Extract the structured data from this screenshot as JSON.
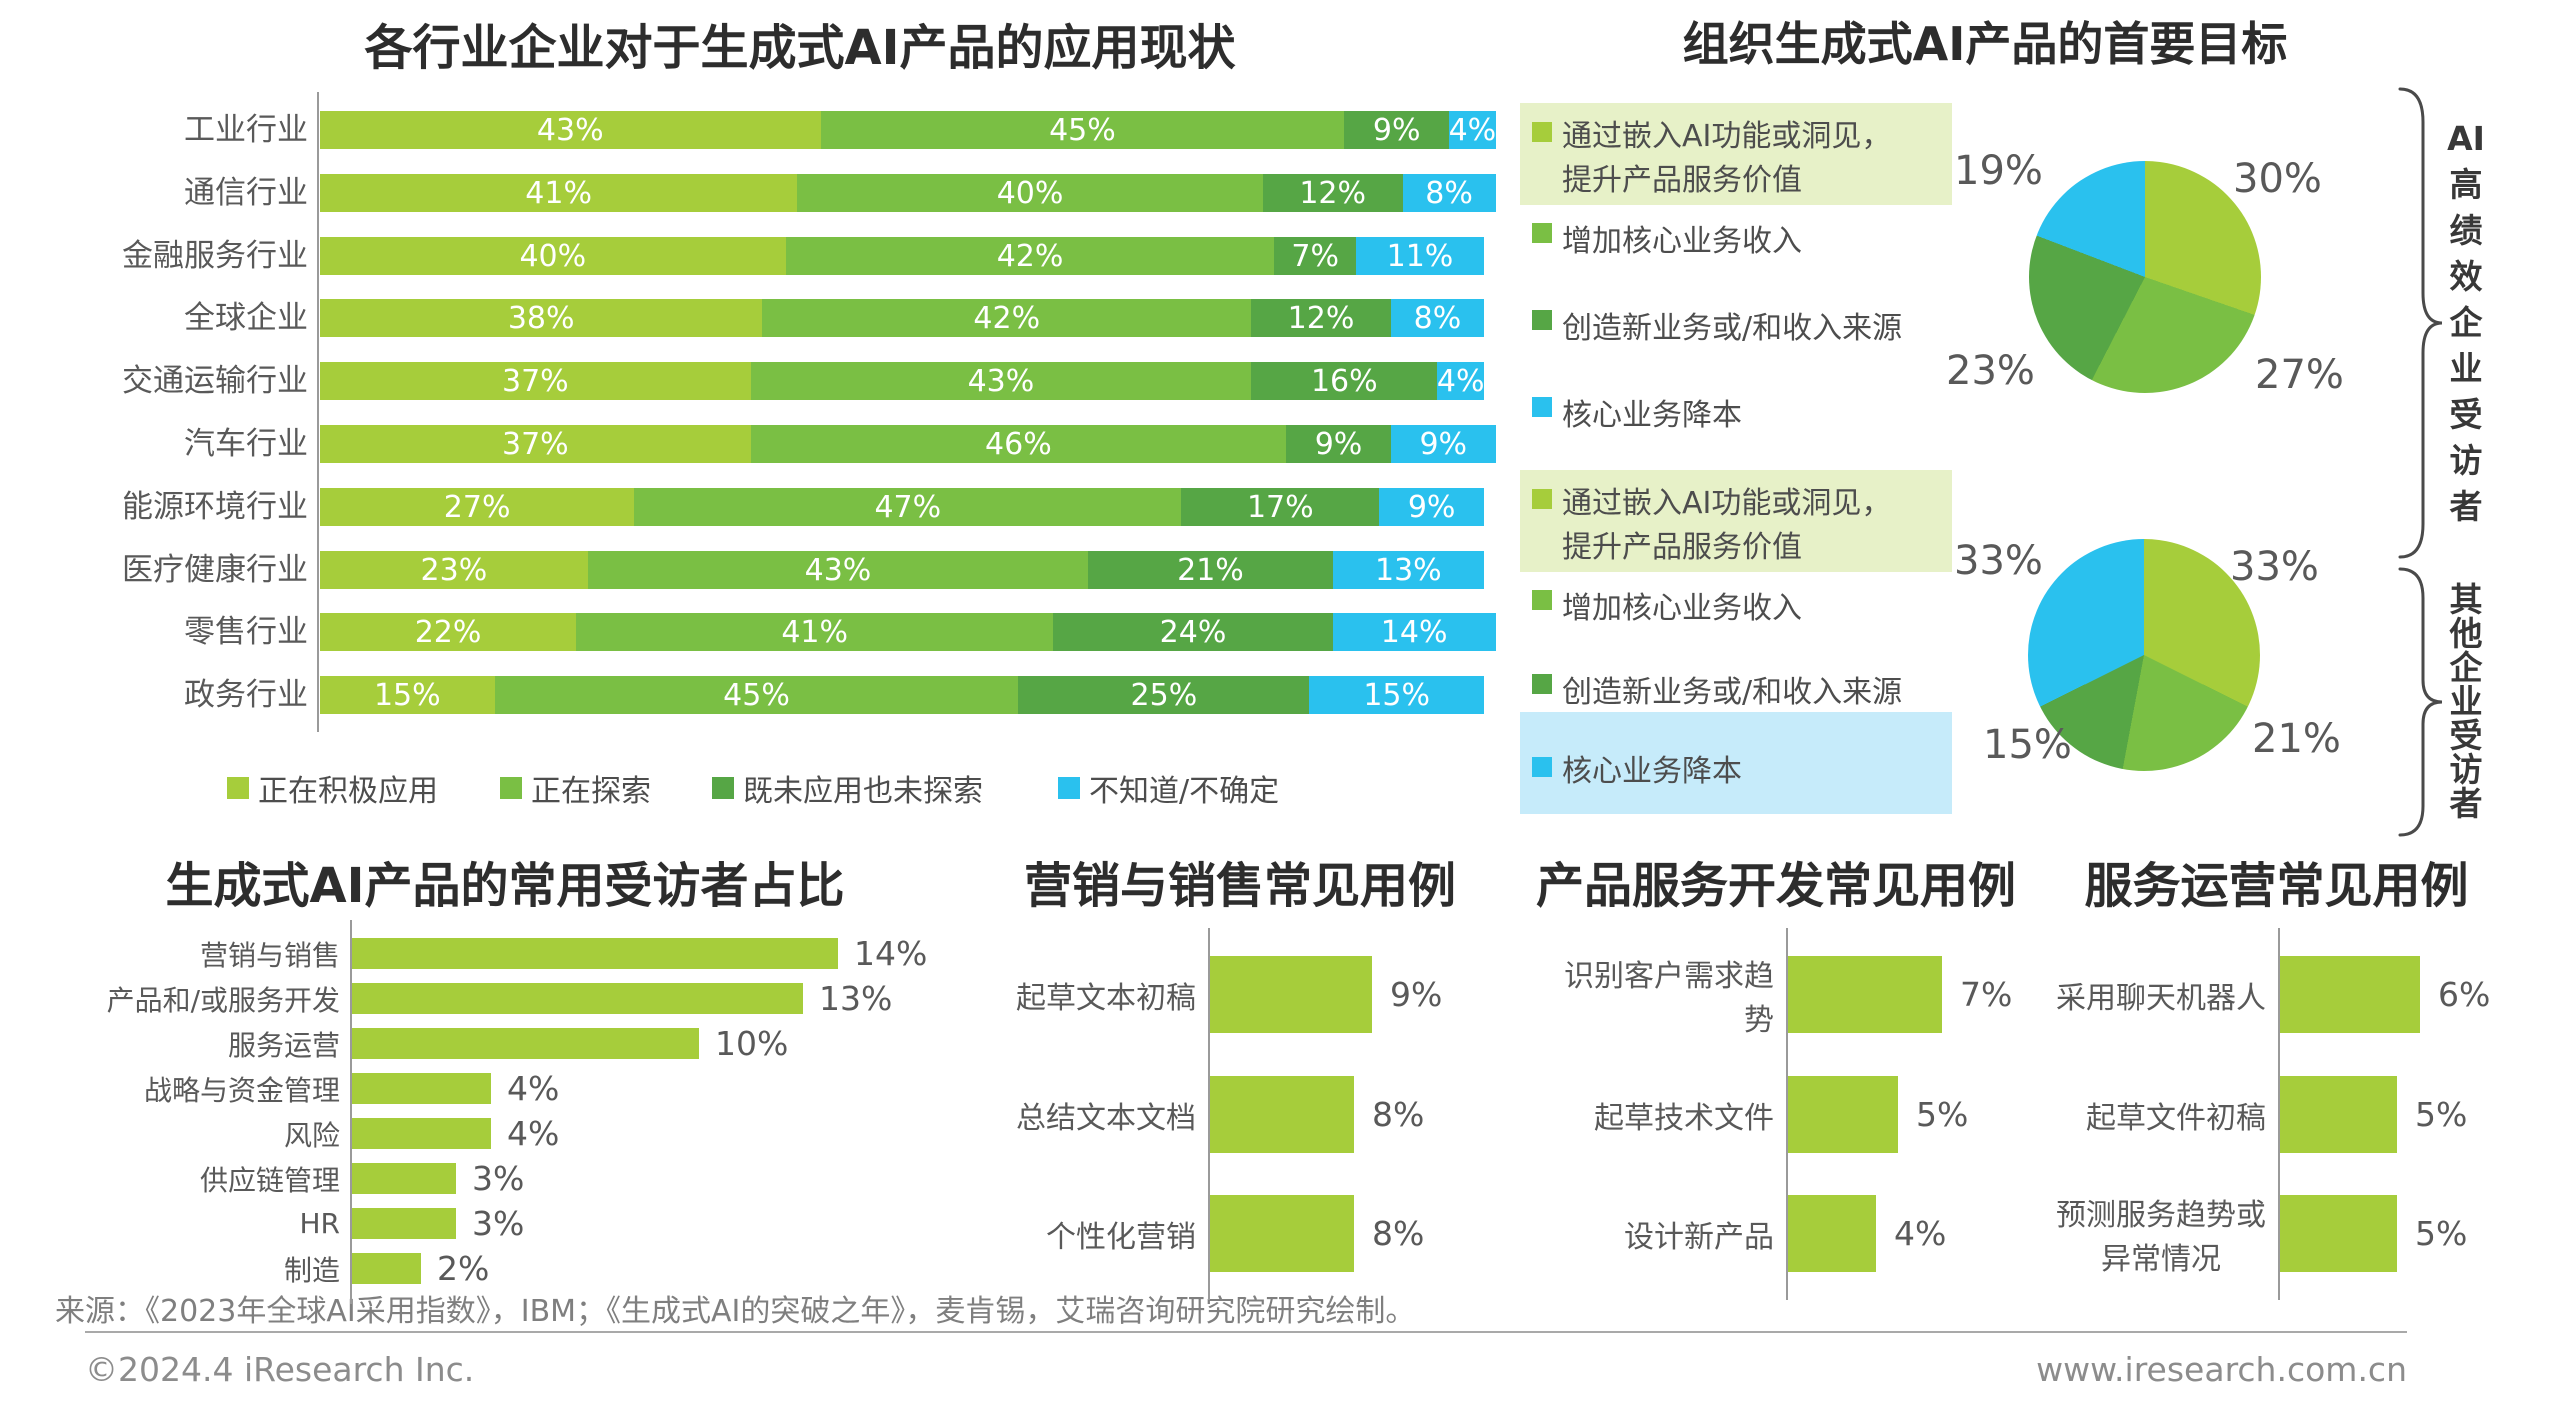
{
  "colors": {
    "series": [
      "#a6cd3b",
      "#7abf44",
      "#56a645",
      "#2ac1ee"
    ],
    "highlight_green": "#e7f1c8",
    "highlight_blue": "#c6ebfa",
    "title_text": "#2d2d2d",
    "label_text": "#595959"
  },
  "chart_data": [
    {
      "type": "bar",
      "variant": "horizontal-stacked",
      "title": "各行业企业对于生成式AI产品的应用现状",
      "unit": "%",
      "legend_position": "bottom",
      "categories": [
        "工业行业",
        "通信行业",
        "金融服务行业",
        "全球企业",
        "交通运输行业",
        "汽车行业",
        "能源环境行业",
        "医疗健康行业",
        "零售行业",
        "政务行业"
      ],
      "series": [
        {
          "name": "正在积极应用",
          "values": [
            43,
            41,
            40,
            38,
            37,
            37,
            27,
            23,
            22,
            15
          ]
        },
        {
          "name": "正在探索",
          "values": [
            45,
            40,
            42,
            42,
            43,
            46,
            47,
            43,
            41,
            45
          ]
        },
        {
          "name": "既未应用也未探索",
          "values": [
            9,
            12,
            7,
            12,
            16,
            9,
            17,
            21,
            24,
            25
          ]
        },
        {
          "name": "不知道/不确定",
          "values": [
            4,
            8,
            11,
            8,
            4,
            9,
            9,
            13,
            14,
            15
          ]
        }
      ]
    },
    {
      "type": "pie",
      "title": "组织生成式AI产品的首要目标",
      "group_label": "AI高绩效企业受访者",
      "slices": [
        {
          "label": "通过嵌入AI功能或洞见，提升产品服务价值",
          "value": 30
        },
        {
          "label": "增加核心业务收入",
          "value": 27
        },
        {
          "label": "创造新业务或/和收入来源",
          "value": 23
        },
        {
          "label": "核心业务降本",
          "value": 19
        }
      ]
    },
    {
      "type": "pie",
      "group_label": "其他企业受访者",
      "slices": [
        {
          "label": "通过嵌入AI功能或洞见，提升产品服务价值",
          "value": 33
        },
        {
          "label": "增加核心业务收入",
          "value": 21
        },
        {
          "label": "创造新业务或/和收入来源",
          "value": 15
        },
        {
          "label": "核心业务降本",
          "value": 33
        }
      ]
    },
    {
      "type": "bar",
      "title": "生成式AI产品的常用受访者占比",
      "unit": "%",
      "categories": [
        "营销与销售",
        "产品和/或服务开发",
        "服务运营",
        "战略与资金管理",
        "风险",
        "供应链管理",
        "HR",
        "制造"
      ],
      "values": [
        14,
        13,
        10,
        4,
        4,
        3,
        3,
        2
      ]
    },
    {
      "type": "bar",
      "title": "营销与销售常见用例",
      "unit": "%",
      "categories": [
        "起草文本初稿",
        "总结文本文档",
        "个性化营销"
      ],
      "values": [
        9,
        8,
        8
      ]
    },
    {
      "type": "bar",
      "title": "产品服务开发常见用例",
      "unit": "%",
      "categories": [
        "识别客户需求趋势",
        "起草技术文件",
        "设计新产品"
      ],
      "values": [
        7,
        5,
        4
      ]
    },
    {
      "type": "bar",
      "title": "服务运营常见用例",
      "unit": "%",
      "categories": [
        "采用聊天机器人",
        "起草文件初稿",
        "预测服务趋势或|异常情况"
      ],
      "values": [
        6,
        5,
        5
      ]
    }
  ],
  "goals_legend": {
    "items": [
      "通过嵌入AI功能或洞见，|提升产品服务价值",
      "增加核心业务收入",
      "创造新业务或/和收入来源",
      "核心业务降本"
    ]
  },
  "footer": {
    "source": "来源：《2023年全球AI采用指数》，IBM；《生成式AI的突破之年》，麦肯锡，艾瑞咨询研究院研究绘制。",
    "copyright": "©2024.4 iResearch Inc.",
    "website": "www.iresearch.com.cn"
  }
}
